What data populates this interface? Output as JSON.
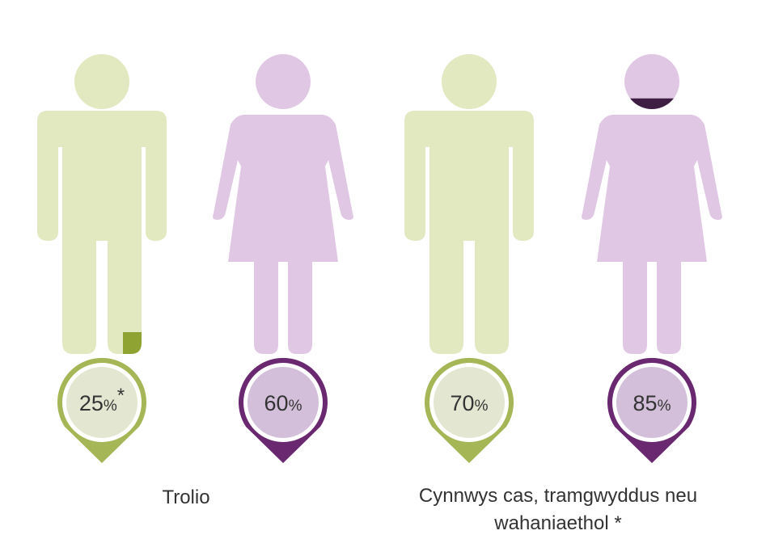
{
  "chart_data": {
    "type": "pictogram",
    "groups": [
      {
        "label_lines": [
          "Trolio"
        ],
        "items": [
          {
            "figure": "male",
            "value": 25,
            "pct_symbol": "%",
            "note": "*"
          },
          {
            "figure": "female",
            "value": 60,
            "pct_symbol": "%",
            "note": ""
          }
        ]
      },
      {
        "label_lines": [
          "Cynnwys cas, tramgwyddus neu",
          "wahaniaethol *"
        ],
        "items": [
          {
            "figure": "male",
            "value": 70,
            "pct_symbol": "%",
            "note": ""
          },
          {
            "figure": "female",
            "value": 85,
            "pct_symbol": "%",
            "note": ""
          }
        ]
      }
    ],
    "colors": {
      "male_light": "#e2e8c0",
      "male_dark": "#8fa332",
      "male_pin": "#a5b656",
      "male_pin_inner": "#e3e7d1",
      "female_light": "#e0c8e4",
      "female_dark": "#502a5c",
      "female_dark_alt": "#3f1e44",
      "female_pin": "#6a2870",
      "female_pin_inner": "#d3bfda",
      "text": "#333333"
    }
  }
}
